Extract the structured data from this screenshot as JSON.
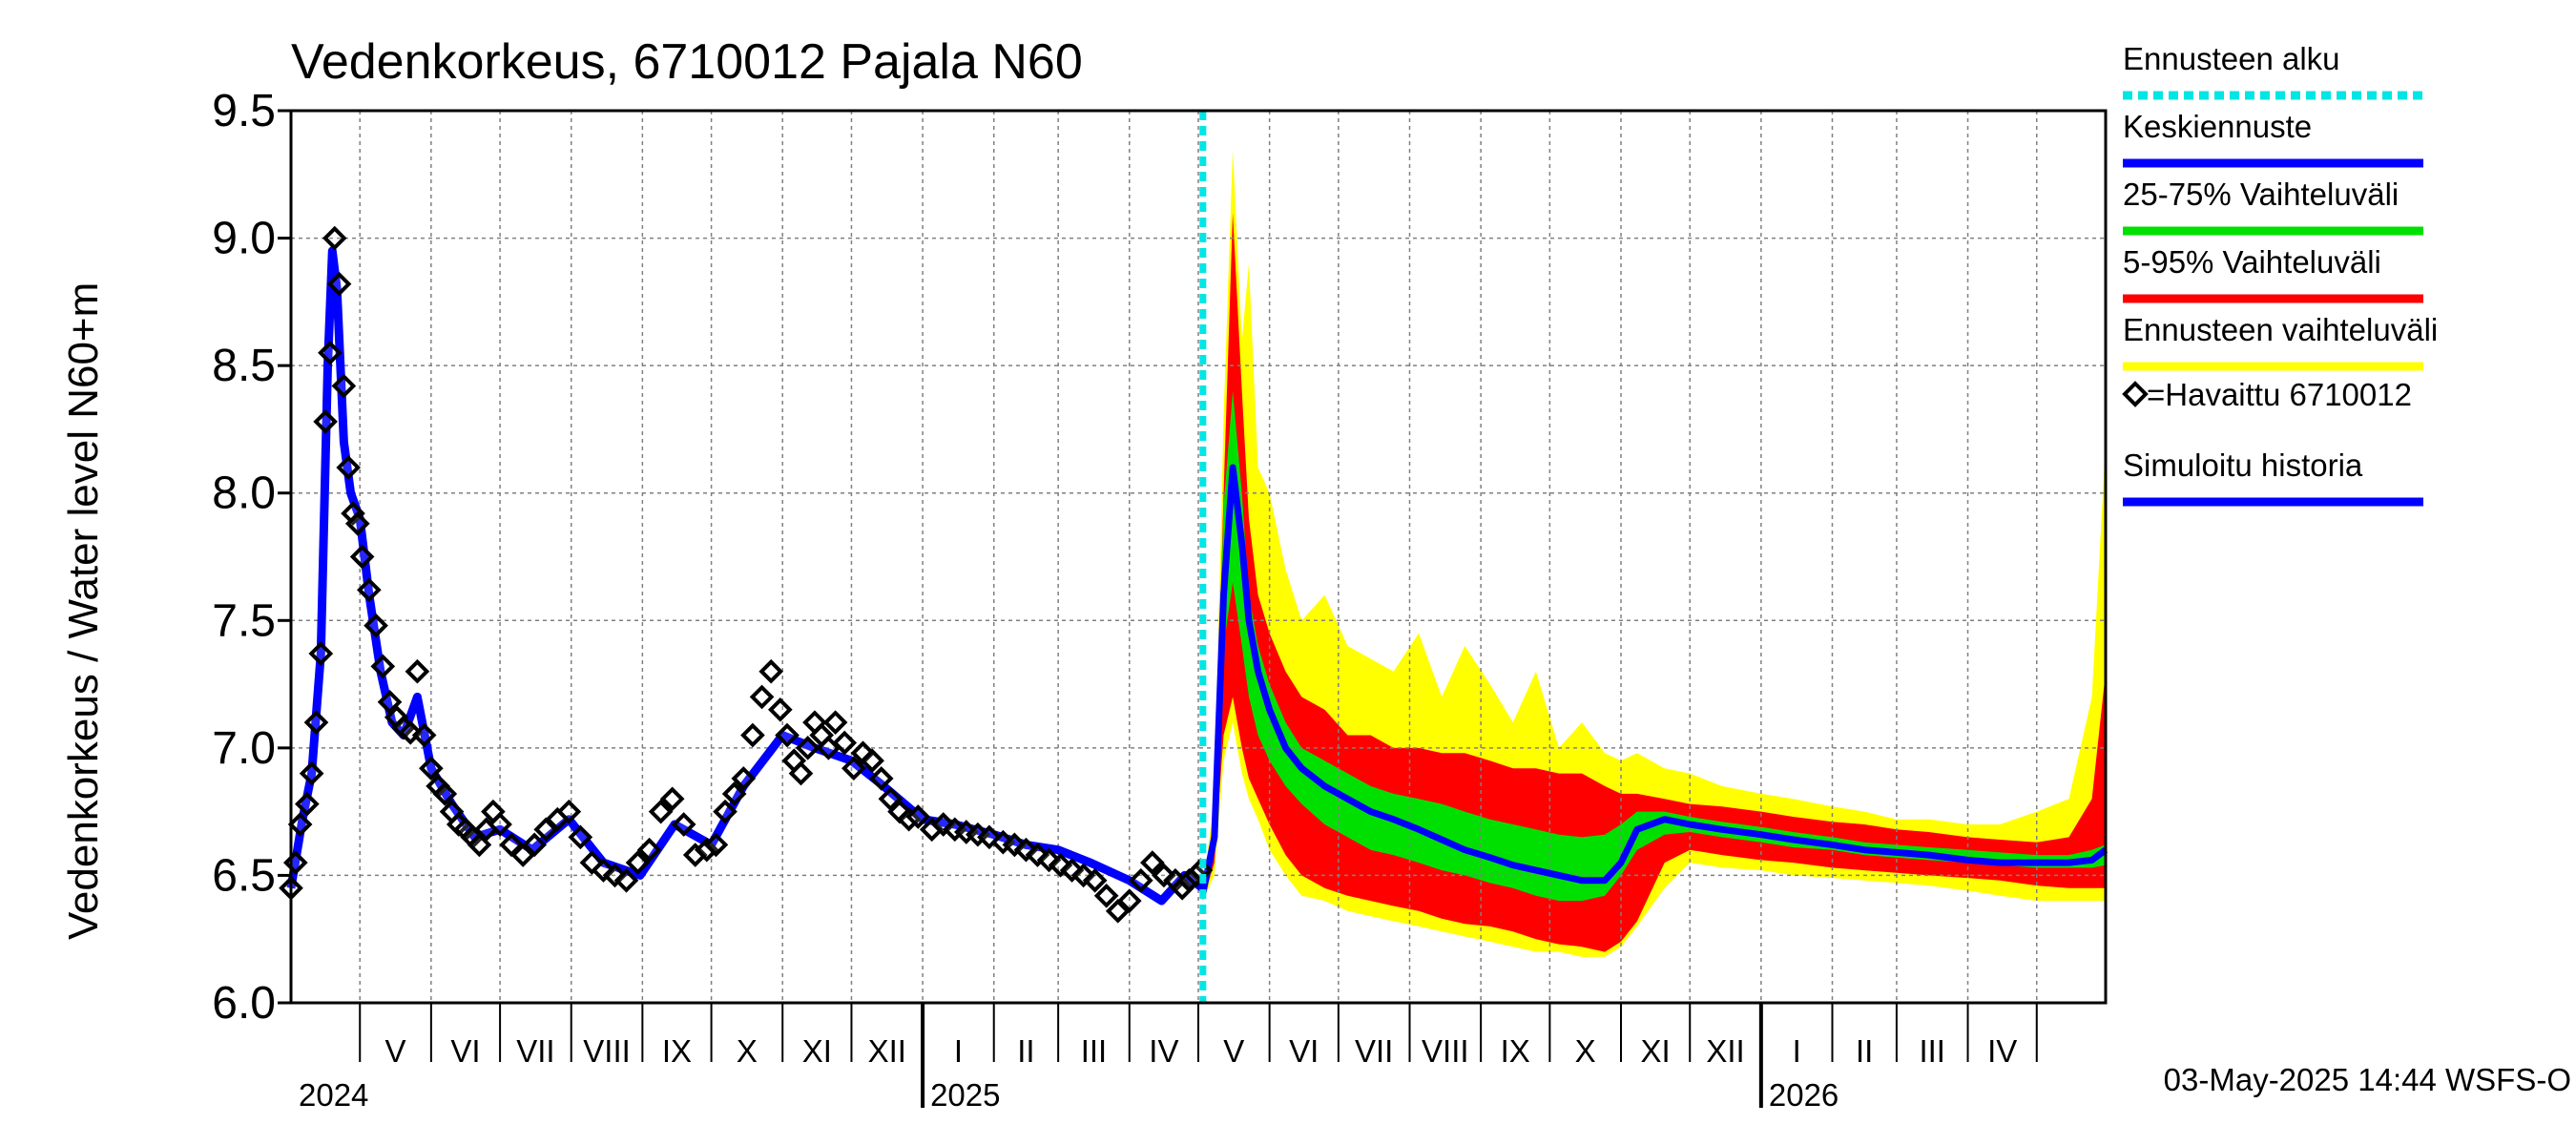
{
  "chart_data": {
    "type": "line",
    "title": "Vedenkorkeus, 6710012 Pajala N60",
    "ylabel": "Vedenkorkeus / Water level    N60+m",
    "ylim": [
      6.0,
      9.5
    ],
    "yticks": [
      "6.0",
      "6.5",
      "7.0",
      "7.5",
      "8.0",
      "8.5",
      "9.0",
      "9.5"
    ],
    "xlim": [
      "2024-04-01",
      "2026-05-31"
    ],
    "grid": true,
    "legend_position": "right",
    "forecast_start": "2025-05-03",
    "months": [
      {
        "date": "2024-04-01",
        "label": ""
      },
      {
        "date": "2024-05-01",
        "label": "V"
      },
      {
        "date": "2024-06-01",
        "label": "VI"
      },
      {
        "date": "2024-07-01",
        "label": "VII"
      },
      {
        "date": "2024-08-01",
        "label": "VIII"
      },
      {
        "date": "2024-09-01",
        "label": "IX"
      },
      {
        "date": "2024-10-01",
        "label": "X"
      },
      {
        "date": "2024-11-01",
        "label": "XI"
      },
      {
        "date": "2024-12-01",
        "label": "XII"
      },
      {
        "date": "2025-01-01",
        "label": "I"
      },
      {
        "date": "2025-02-01",
        "label": "II"
      },
      {
        "date": "2025-03-01",
        "label": "III"
      },
      {
        "date": "2025-04-01",
        "label": "IV"
      },
      {
        "date": "2025-05-01",
        "label": "V"
      },
      {
        "date": "2025-06-01",
        "label": "VI"
      },
      {
        "date": "2025-07-01",
        "label": "VII"
      },
      {
        "date": "2025-08-01",
        "label": "VIII"
      },
      {
        "date": "2025-09-01",
        "label": "IX"
      },
      {
        "date": "2025-10-01",
        "label": "X"
      },
      {
        "date": "2025-11-01",
        "label": "XI"
      },
      {
        "date": "2025-12-01",
        "label": "XII"
      },
      {
        "date": "2026-01-01",
        "label": "I"
      },
      {
        "date": "2026-02-01",
        "label": "II"
      },
      {
        "date": "2026-03-01",
        "label": "III"
      },
      {
        "date": "2026-04-01",
        "label": "IV"
      },
      {
        "date": "2026-05-01",
        "label": ""
      }
    ],
    "years": [
      {
        "label": "2024",
        "date": "2024-04-01"
      },
      {
        "label": "2025",
        "date": "2025-01-01"
      },
      {
        "label": "2026",
        "date": "2026-01-01"
      }
    ],
    "observed": {
      "name": "=Havaittu 6710012",
      "x": [
        "2024-04-01",
        "2024-04-03",
        "2024-04-05",
        "2024-04-08",
        "2024-04-10",
        "2024-04-12",
        "2024-04-14",
        "2024-04-16",
        "2024-04-18",
        "2024-04-20",
        "2024-04-22",
        "2024-04-24",
        "2024-04-26",
        "2024-04-28",
        "2024-04-30",
        "2024-05-02",
        "2024-05-05",
        "2024-05-08",
        "2024-05-11",
        "2024-05-14",
        "2024-05-17",
        "2024-05-20",
        "2024-05-23",
        "2024-05-26",
        "2024-05-29",
        "2024-06-01",
        "2024-06-04",
        "2024-06-07",
        "2024-06-10",
        "2024-06-13",
        "2024-06-16",
        "2024-06-19",
        "2024-06-22",
        "2024-06-25",
        "2024-06-28",
        "2024-07-01",
        "2024-07-06",
        "2024-07-11",
        "2024-07-16",
        "2024-07-21",
        "2024-07-26",
        "2024-07-31",
        "2024-08-05",
        "2024-08-10",
        "2024-08-15",
        "2024-08-20",
        "2024-08-25",
        "2024-08-30",
        "2024-09-04",
        "2024-09-09",
        "2024-09-14",
        "2024-09-19",
        "2024-09-24",
        "2024-09-29",
        "2024-10-03",
        "2024-10-07",
        "2024-10-11",
        "2024-10-15",
        "2024-10-19",
        "2024-10-23",
        "2024-10-27",
        "2024-10-31",
        "2024-11-03",
        "2024-11-06",
        "2024-11-09",
        "2024-11-12",
        "2024-11-15",
        "2024-11-18",
        "2024-11-21",
        "2024-11-24",
        "2024-11-28",
        "2024-12-02",
        "2024-12-06",
        "2024-12-10",
        "2024-12-14",
        "2024-12-18",
        "2024-12-22",
        "2024-12-26",
        "2024-12-30",
        "2025-01-05",
        "2025-01-10",
        "2025-01-15",
        "2025-01-20",
        "2025-01-25",
        "2025-01-30",
        "2025-02-05",
        "2025-02-10",
        "2025-02-15",
        "2025-02-20",
        "2025-02-25",
        "2025-03-02",
        "2025-03-07",
        "2025-03-12",
        "2025-03-17",
        "2025-03-22",
        "2025-03-27",
        "2025-04-01",
        "2025-04-06",
        "2025-04-11",
        "2025-04-16",
        "2025-04-21",
        "2025-04-24",
        "2025-04-27",
        "2025-04-30",
        "2025-05-02"
      ],
      "y": [
        6.45,
        6.55,
        6.7,
        6.78,
        6.9,
        7.1,
        7.37,
        8.28,
        8.55,
        9.0,
        8.82,
        8.42,
        8.1,
        7.92,
        7.88,
        7.75,
        7.62,
        7.48,
        7.32,
        7.18,
        7.12,
        7.08,
        7.06,
        7.3,
        7.05,
        6.92,
        6.85,
        6.82,
        6.75,
        6.7,
        6.68,
        6.65,
        6.62,
        6.68,
        6.75,
        6.7,
        6.62,
        6.58,
        6.62,
        6.68,
        6.72,
        6.75,
        6.65,
        6.55,
        6.52,
        6.5,
        6.48,
        6.55,
        6.6,
        6.75,
        6.8,
        6.7,
        6.58,
        6.6,
        6.62,
        6.75,
        6.82,
        6.88,
        7.05,
        7.2,
        7.3,
        7.15,
        7.05,
        6.95,
        6.9,
        7.0,
        7.1,
        7.05,
        7.0,
        7.1,
        7.02,
        6.92,
        6.98,
        6.95,
        6.88,
        6.8,
        6.75,
        6.72,
        6.73,
        6.68,
        6.7,
        6.68,
        6.67,
        6.66,
        6.65,
        6.63,
        6.62,
        6.6,
        6.58,
        6.56,
        6.54,
        6.52,
        6.5,
        6.48,
        6.42,
        6.36,
        6.4,
        6.48,
        6.55,
        6.5,
        6.48,
        6.45,
        6.48,
        6.5,
        6.52
      ]
    },
    "simulated_history": {
      "name": "Simuloitu historia",
      "x": [
        "2024-04-01",
        "2024-04-06",
        "2024-04-10",
        "2024-04-14",
        "2024-04-17",
        "2024-04-19",
        "2024-04-21",
        "2024-04-24",
        "2024-04-27",
        "2024-05-01",
        "2024-05-05",
        "2024-05-10",
        "2024-05-15",
        "2024-05-20",
        "2024-05-26",
        "2024-06-01",
        "2024-06-10",
        "2024-06-20",
        "2024-07-01",
        "2024-07-15",
        "2024-07-31",
        "2024-08-15",
        "2024-08-31",
        "2024-09-15",
        "2024-10-01",
        "2024-10-15",
        "2024-11-01",
        "2024-11-15",
        "2024-12-01",
        "2024-12-15",
        "2025-01-01",
        "2025-01-15",
        "2025-02-01",
        "2025-02-15",
        "2025-03-01",
        "2025-03-15",
        "2025-04-01",
        "2025-04-15",
        "2025-04-25",
        "2025-05-03"
      ],
      "y": [
        6.45,
        6.72,
        6.9,
        7.37,
        8.5,
        8.95,
        8.8,
        8.2,
        8.0,
        7.9,
        7.6,
        7.3,
        7.1,
        7.05,
        7.2,
        6.92,
        6.78,
        6.65,
        6.68,
        6.6,
        6.72,
        6.55,
        6.5,
        6.7,
        6.62,
        6.85,
        7.05,
        7.0,
        6.95,
        6.85,
        6.72,
        6.7,
        6.66,
        6.62,
        6.6,
        6.55,
        6.48,
        6.4,
        6.5,
        6.45
      ]
    },
    "forecast_x": [
      "2025-05-03",
      "2025-05-08",
      "2025-05-12",
      "2025-05-16",
      "2025-05-20",
      "2025-05-23",
      "2025-05-27",
      "2025-06-01",
      "2025-06-08",
      "2025-06-15",
      "2025-06-25",
      "2025-07-05",
      "2025-07-15",
      "2025-07-25",
      "2025-08-05",
      "2025-08-15",
      "2025-08-25",
      "2025-09-05",
      "2025-09-15",
      "2025-09-25",
      "2025-10-05",
      "2025-10-15",
      "2025-10-25",
      "2025-11-01",
      "2025-11-08",
      "2025-11-20",
      "2025-12-01",
      "2025-12-15",
      "2026-01-01",
      "2026-01-15",
      "2026-02-01",
      "2026-02-15",
      "2026-03-01",
      "2026-03-15",
      "2026-04-01",
      "2026-04-15",
      "2026-05-01",
      "2026-05-15",
      "2026-05-25",
      "2026-05-31"
    ],
    "band_outer": {
      "name": "Ennusteen vaihteluväli",
      "lower": [
        6.4,
        6.5,
        6.95,
        7.1,
        6.9,
        6.8,
        6.72,
        6.6,
        6.5,
        6.42,
        6.4,
        6.36,
        6.34,
        6.32,
        6.3,
        6.28,
        6.26,
        6.24,
        6.22,
        6.2,
        6.2,
        6.18,
        6.18,
        6.22,
        6.3,
        6.45,
        6.55,
        6.53,
        6.52,
        6.5,
        6.49,
        6.48,
        6.47,
        6.46,
        6.44,
        6.42,
        6.4,
        6.4,
        6.4,
        6.4
      ],
      "upper": [
        6.45,
        6.8,
        8.3,
        9.35,
        8.6,
        8.9,
        8.1,
        8.0,
        7.7,
        7.5,
        7.6,
        7.4,
        7.35,
        7.3,
        7.45,
        7.2,
        7.4,
        7.25,
        7.1,
        7.3,
        7.0,
        7.1,
        6.98,
        6.95,
        6.98,
        6.92,
        6.9,
        6.85,
        6.82,
        6.8,
        6.77,
        6.75,
        6.72,
        6.72,
        6.7,
        6.7,
        6.75,
        6.8,
        7.2,
        8.2
      ]
    },
    "band_90": {
      "name": "5-95% Vaihteluväli",
      "lower": [
        6.4,
        6.55,
        7.05,
        7.2,
        7.0,
        6.88,
        6.8,
        6.7,
        6.58,
        6.5,
        6.45,
        6.42,
        6.4,
        6.38,
        6.36,
        6.33,
        6.31,
        6.3,
        6.28,
        6.25,
        6.23,
        6.22,
        6.2,
        6.24,
        6.32,
        6.55,
        6.6,
        6.58,
        6.56,
        6.55,
        6.53,
        6.52,
        6.51,
        6.5,
        6.49,
        6.48,
        6.46,
        6.45,
        6.45,
        6.45
      ],
      "upper": [
        6.42,
        6.75,
        8.0,
        9.1,
        8.4,
        7.9,
        7.6,
        7.45,
        7.3,
        7.2,
        7.15,
        7.05,
        7.05,
        7.0,
        7.0,
        6.98,
        6.98,
        6.95,
        6.92,
        6.92,
        6.9,
        6.9,
        6.85,
        6.82,
        6.82,
        6.8,
        6.78,
        6.77,
        6.75,
        6.73,
        6.71,
        6.7,
        6.68,
        6.67,
        6.65,
        6.64,
        6.63,
        6.65,
        6.8,
        7.3
      ]
    },
    "band_50": {
      "name": "25-75% Vaihteluväli",
      "lower": [
        6.42,
        6.62,
        7.4,
        7.65,
        7.4,
        7.2,
        7.05,
        6.95,
        6.85,
        6.78,
        6.7,
        6.65,
        6.6,
        6.58,
        6.55,
        6.52,
        6.5,
        6.47,
        6.45,
        6.42,
        6.4,
        6.4,
        6.42,
        6.5,
        6.6,
        6.66,
        6.67,
        6.65,
        6.63,
        6.61,
        6.6,
        6.58,
        6.57,
        6.56,
        6.55,
        6.54,
        6.53,
        6.53,
        6.53,
        6.54
      ],
      "upper": [
        6.44,
        6.68,
        7.95,
        8.4,
        8.0,
        7.6,
        7.4,
        7.25,
        7.1,
        7.0,
        6.95,
        6.9,
        6.85,
        6.82,
        6.8,
        6.78,
        6.75,
        6.72,
        6.7,
        6.68,
        6.66,
        6.65,
        6.66,
        6.7,
        6.75,
        6.75,
        6.73,
        6.71,
        6.69,
        6.67,
        6.65,
        6.63,
        6.62,
        6.61,
        6.6,
        6.59,
        6.58,
        6.58,
        6.6,
        6.62
      ]
    },
    "median": {
      "name": "Keskiennuste",
      "y": [
        6.43,
        6.65,
        7.6,
        8.1,
        7.8,
        7.5,
        7.3,
        7.15,
        7.0,
        6.92,
        6.85,
        6.8,
        6.75,
        6.72,
        6.68,
        6.64,
        6.6,
        6.57,
        6.54,
        6.52,
        6.5,
        6.48,
        6.48,
        6.55,
        6.68,
        6.72,
        6.7,
        6.68,
        6.66,
        6.64,
        6.62,
        6.6,
        6.59,
        6.58,
        6.56,
        6.55,
        6.55,
        6.55,
        6.56,
        6.6
      ]
    },
    "legend": [
      {
        "label": "Ennusteen alku",
        "color": "#00e5e5",
        "style": "dashed"
      },
      {
        "label": "Keskiennuste",
        "color": "#0000ff",
        "style": "solid"
      },
      {
        "label": "25-75% Vaihteluväli",
        "color": "#00e000",
        "style": "solid"
      },
      {
        "label": "5-95% Vaihteluväli",
        "color": "#ff0000",
        "style": "solid"
      },
      {
        "label": "Ennusteen vaihteluväli",
        "color": "#ffff00",
        "style": "solid"
      },
      {
        "label": "=Havaittu 6710012",
        "color": "#000000",
        "style": "marker"
      },
      {
        "label": "Simuloitu historia",
        "color": "#0000ff",
        "style": "solid"
      }
    ],
    "colors": {
      "outer": "#ffff00",
      "band90": "#ff0000",
      "band50": "#00e000",
      "median": "#0000ff",
      "history": "#0000ff",
      "forecast_start": "#00e5e5",
      "grid": "#808080"
    }
  },
  "footer": {
    "timestamp": "03-May-2025 14:44 WSFS-O"
  }
}
